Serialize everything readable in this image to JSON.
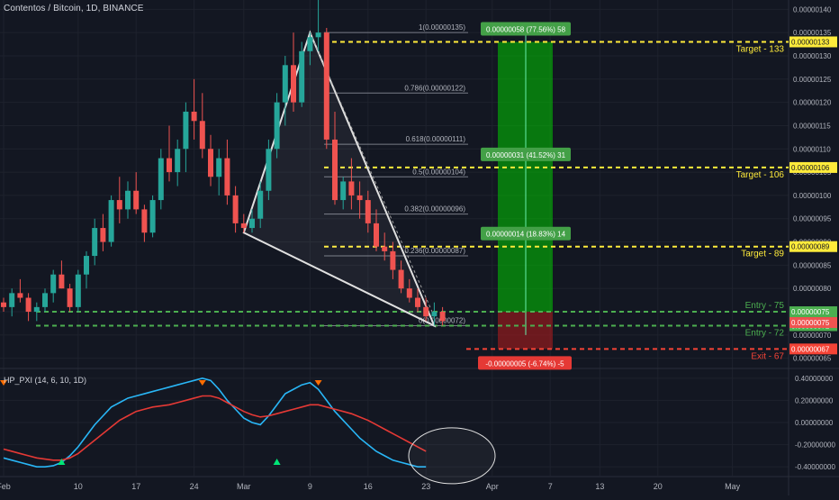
{
  "header": {
    "title": "Contentos / Bitcoin, 1D, BINANCE"
  },
  "indicator": {
    "label": "HP_PXI (14, 6, 10, 1D)"
  },
  "colors": {
    "background": "#131722",
    "grid": "#1e222d",
    "bull": "#26a69a",
    "bear": "#ef5350",
    "target": "#ffeb3b",
    "entry": "#4caf50",
    "exit": "#f44336",
    "pxi_fast": "#29b6f6",
    "pxi_slow": "#e53935"
  },
  "chart_data": [
    {
      "type": "candlestick",
      "symbol": "Contentos / Bitcoin",
      "interval": "1D",
      "exchange": "BINANCE",
      "y_axis": {
        "ticks": [
          "0.00000065",
          "0.00000070",
          "0.00000075",
          "0.00000080",
          "0.00000085",
          "0.00000090",
          "0.00000095",
          "0.00000100",
          "0.00000105",
          "0.00000110",
          "0.00000115",
          "0.00000120",
          "0.00000125",
          "0.00000130",
          "0.00000135",
          "0.00000140"
        ],
        "range": [
          6.3e-07,
          1.42e-06
        ]
      },
      "x_axis": {
        "ticks": [
          "Feb",
          "10",
          "17",
          "24",
          "Mar",
          "9",
          "16",
          "23",
          "Apr",
          "7",
          "13",
          "20",
          "May"
        ],
        "tick_day_index": [
          0,
          9,
          16,
          23,
          29,
          37,
          44,
          51,
          59,
          66,
          72,
          79,
          88
        ]
      },
      "candles": [
        [
          77,
          78,
          75,
          76
        ],
        [
          76,
          80,
          74,
          79
        ],
        [
          79,
          82,
          77,
          78
        ],
        [
          78,
          79,
          73,
          75
        ],
        [
          75,
          77,
          73,
          76
        ],
        [
          76,
          80,
          75,
          79
        ],
        [
          79,
          84,
          77,
          83
        ],
        [
          83,
          86,
          80,
          80
        ],
        [
          80,
          81,
          75,
          76
        ],
        [
          76,
          84,
          75,
          83
        ],
        [
          83,
          88,
          80,
          87
        ],
        [
          87,
          95,
          85,
          93
        ],
        [
          93,
          96,
          88,
          90
        ],
        [
          90,
          100,
          89,
          99
        ],
        [
          99,
          104,
          94,
          97
        ],
        [
          97,
          103,
          95,
          101
        ],
        [
          101,
          105,
          96,
          97
        ],
        [
          97,
          98,
          90,
          92
        ],
        [
          92,
          100,
          91,
          99
        ],
        [
          99,
          110,
          97,
          108
        ],
        [
          108,
          115,
          103,
          105
        ],
        [
          105,
          112,
          102,
          110
        ],
        [
          110,
          120,
          105,
          118
        ],
        [
          118,
          125,
          112,
          116
        ],
        [
          116,
          122,
          108,
          110
        ],
        [
          110,
          113,
          102,
          104
        ],
        [
          104,
          110,
          100,
          108
        ],
        [
          108,
          112,
          98,
          100
        ],
        [
          100,
          102,
          92,
          94
        ],
        [
          94,
          96,
          92,
          93
        ],
        [
          93,
          97,
          92,
          95
        ],
        [
          95,
          103,
          93,
          101
        ],
        [
          101,
          112,
          99,
          110
        ],
        [
          110,
          122,
          108,
          120
        ],
        [
          120,
          130,
          115,
          128
        ],
        [
          128,
          135,
          118,
          120
        ],
        [
          120,
          133,
          119,
          131
        ],
        [
          131,
          135,
          128,
          134
        ],
        [
          134,
          142,
          131,
          135
        ],
        [
          135,
          136,
          110,
          112
        ],
        [
          112,
          118,
          98,
          99
        ],
        [
          99,
          104,
          97,
          103
        ],
        [
          103,
          108,
          97,
          100
        ],
        [
          100,
          103,
          95,
          99
        ],
        [
          99,
          101,
          92,
          94
        ],
        [
          94,
          97,
          88,
          89
        ],
        [
          89,
          92,
          86,
          88
        ],
        [
          88,
          90,
          82,
          84
        ],
        [
          84,
          86,
          79,
          80
        ],
        [
          80,
          82,
          77,
          78
        ],
        [
          78,
          80,
          75,
          76
        ],
        [
          76,
          78,
          73,
          74
        ],
        [
          74,
          77,
          72,
          75
        ],
        [
          75,
          76,
          72,
          73
        ]
      ],
      "fibonacci_levels": [
        {
          "label": "1(0.00000135)",
          "value": 135
        },
        {
          "label": "0.786(0.00000122)",
          "value": 122
        },
        {
          "label": "0.618(0.00000111)",
          "value": 111
        },
        {
          "label": "0.5(0.00000104)",
          "value": 104
        },
        {
          "label": "0.382(0.00000096)",
          "value": 96
        },
        {
          "label": "0.236(0.00000087)",
          "value": 87
        },
        {
          "label": "0(0.00000072)",
          "value": 72
        }
      ],
      "horizontal_levels": [
        {
          "text": "Target - 133",
          "price_label": "0.00000133",
          "value": 133,
          "kind": "target"
        },
        {
          "text": "Target - 106",
          "price_label": "0.00000106",
          "value": 106,
          "kind": "target"
        },
        {
          "text": "Target - 89",
          "price_label": "0.00000089",
          "value": 89,
          "kind": "target"
        },
        {
          "text": "Entry - 75",
          "price_label": "0.00000075",
          "value": 75,
          "kind": "entry"
        },
        {
          "text": "Entry - 72",
          "price_label": "0.00000072",
          "value": 72,
          "kind": "entry"
        },
        {
          "text": "Exit - 67",
          "price_label": "0.00000067",
          "value": 67,
          "kind": "exit"
        }
      ],
      "current_price": {
        "price_label": "0.00000075",
        "value": 75
      },
      "position_labels": [
        {
          "text": "0.00000058 (77.56%) 58",
          "value": 133
        },
        {
          "text": "0.00000031 (41.52%) 31",
          "value": 106
        },
        {
          "text": "0.00000014 (18.83%) 14",
          "value": 89
        },
        {
          "text": "-0.00000005 (-6.74%) -5",
          "value": 67
        }
      ],
      "pattern": {
        "type": "triangle",
        "points": [
          [
            29,
            92
          ],
          [
            37,
            135
          ],
          [
            52,
            72
          ]
        ]
      }
    },
    {
      "type": "line",
      "name": "HP_PXI (14, 6, 10, 1D)",
      "y_axis": {
        "ticks": [
          "0.40000000",
          "0.20000000",
          "0.00000000",
          "-0.20000000",
          "-0.40000000"
        ],
        "range": [
          -0.48,
          0.48
        ]
      },
      "series": [
        {
          "values": [
            -0.32,
            -0.34,
            -0.36,
            -0.38,
            -0.4,
            -0.4,
            -0.39,
            -0.36,
            -0.3,
            -0.22,
            -0.12,
            -0.02,
            0.06,
            0.14,
            0.18,
            0.22,
            0.24,
            0.26,
            0.28,
            0.3,
            0.32,
            0.34,
            0.36,
            0.38,
            0.4,
            0.38,
            0.3,
            0.2,
            0.12,
            0.04,
            0.0,
            -0.02,
            0.06,
            0.16,
            0.26,
            0.3,
            0.34,
            0.36,
            0.3,
            0.2,
            0.1,
            0.02,
            -0.06,
            -0.14,
            -0.2,
            -0.26,
            -0.3,
            -0.34,
            -0.36,
            -0.38,
            -0.4,
            -0.4
          ]
        },
        {
          "values": [
            -0.24,
            -0.26,
            -0.28,
            -0.3,
            -0.32,
            -0.33,
            -0.34,
            -0.34,
            -0.32,
            -0.28,
            -0.22,
            -0.16,
            -0.1,
            -0.04,
            0.02,
            0.06,
            0.1,
            0.12,
            0.14,
            0.15,
            0.16,
            0.18,
            0.2,
            0.22,
            0.24,
            0.24,
            0.22,
            0.18,
            0.14,
            0.1,
            0.07,
            0.05,
            0.06,
            0.08,
            0.1,
            0.12,
            0.14,
            0.16,
            0.16,
            0.14,
            0.12,
            0.1,
            0.08,
            0.05,
            0.02,
            -0.02,
            -0.06,
            -0.1,
            -0.14,
            -0.18,
            -0.22,
            -0.26
          ]
        }
      ],
      "markers": [
        {
          "day": 0,
          "kind": "down"
        },
        {
          "day": 7,
          "kind": "up"
        },
        {
          "day": 24,
          "kind": "down"
        },
        {
          "day": 33,
          "kind": "up"
        },
        {
          "day": 38,
          "kind": "down"
        }
      ],
      "highlight": {
        "day": 55,
        "value": -0.3
      }
    }
  ]
}
